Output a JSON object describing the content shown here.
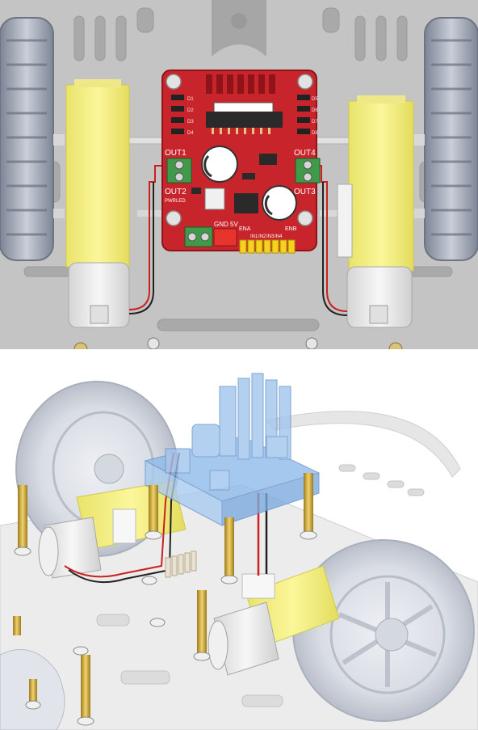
{
  "top_view": {
    "board": {
      "labels": {
        "out1": "OUT1",
        "out2": "OUT2",
        "out3": "OUT3",
        "out4": "OUT4",
        "pwrled": "PWRLED",
        "gnd_5v": "GND 5V",
        "ena": "ENA",
        "enb": "ENB",
        "in_pins": [
          "IN1",
          "IN2",
          "IN3",
          "IN4"
        ],
        "d_left": [
          "D1",
          "D2",
          "D3",
          "D4"
        ],
        "d_right": [
          "D5",
          "D6",
          "D7",
          "D8"
        ]
      }
    }
  },
  "colors": {
    "board_red": "#c8242c",
    "motor_yellow": "#f4ef7a",
    "terminal_green": "#3f9b4a",
    "header_yellow": "#f5d21c",
    "chassis_gray": "#bdbdbd",
    "tire_gray": "#8e96a4",
    "translucent_blue": "#8db9ea",
    "standoff_brass": "#c9a43a"
  }
}
